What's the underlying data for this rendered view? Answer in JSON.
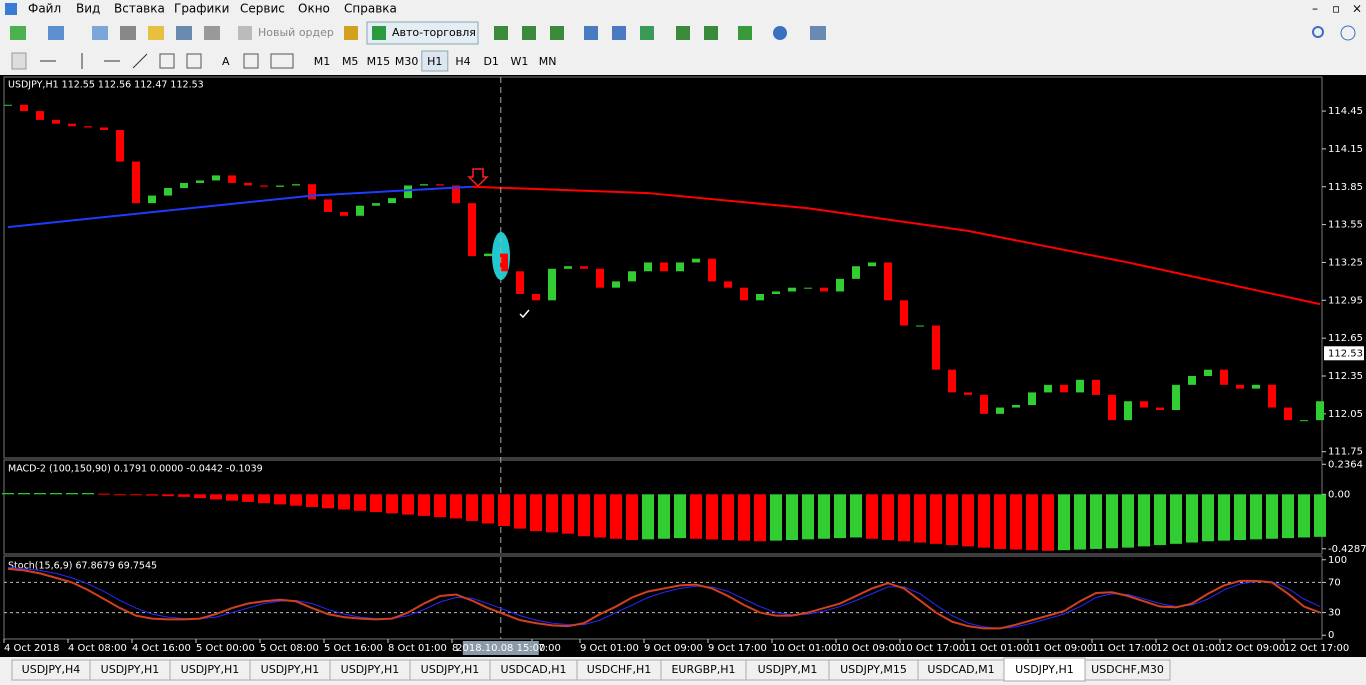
{
  "menu": [
    "Файл",
    "Вид",
    "Вставка",
    "Графики",
    "Сервис",
    "Окно",
    "Справка"
  ],
  "toolbar": {
    "new_order": "Новый ордер",
    "auto_trading": "Авто-торговля"
  },
  "timeframes": [
    "M1",
    "M5",
    "M15",
    "M30",
    "H1",
    "H4",
    "D1",
    "W1",
    "MN"
  ],
  "tabs": [
    "USDJPY,H4",
    "USDJPY,H1",
    "USDJPY,H1",
    "USDJPY,H1",
    "USDJPY,H1",
    "USDJPY,H1",
    "USDCAD,H1",
    "USDCHF,H1",
    "EURGBP,H1",
    "USDJPY,M1",
    "USDJPY,M15",
    "USDCAD,M1",
    "USDJPY,H1",
    "USDCHF,M30"
  ],
  "chart_data": [
    {
      "type": "candlestick",
      "title": "USDJPY,H1  112.55 112.56 112.47 112.53",
      "up_color": "#32cd32",
      "down_color": "#ff0000",
      "closes": [
        114.5,
        114.45,
        114.38,
        114.35,
        114.33,
        114.32,
        114.3,
        114.05,
        113.72,
        113.78,
        113.84,
        113.88,
        113.9,
        113.94,
        113.88,
        113.86,
        113.85,
        113.86,
        113.87,
        113.75,
        113.65,
        113.62,
        113.7,
        113.72,
        113.76,
        113.86,
        113.87,
        113.86,
        113.72,
        113.3,
        113.32,
        113.18,
        113.0,
        112.95,
        113.2,
        113.22,
        113.2,
        113.05,
        113.1,
        113.18,
        113.25,
        113.18,
        113.25,
        113.28,
        113.1,
        113.05,
        112.95,
        113.0,
        113.02,
        113.05,
        113.05,
        113.02,
        113.12,
        113.22,
        113.25,
        112.95,
        112.75,
        112.75,
        112.4,
        112.22,
        112.2,
        112.05,
        112.1,
        112.12,
        112.22,
        112.28,
        112.22,
        112.32,
        112.2,
        112.0,
        112.15,
        112.1,
        112.08,
        112.28,
        112.35,
        112.4,
        112.28,
        112.25,
        112.28,
        112.1,
        112.0,
        112.0,
        112.15
      ],
      "series": [
        {
          "color": "#1e3cff",
          "x": [
            0,
            19,
            29
          ],
          "values": [
            113.53,
            113.78,
            113.85
          ]
        },
        {
          "color": "#ff0000",
          "x": [
            29,
            40,
            50,
            60,
            70,
            82
          ],
          "values": [
            113.85,
            113.8,
            113.68,
            113.5,
            113.25,
            112.92
          ]
        }
      ],
      "ylim": [
        111.7,
        114.72
      ],
      "yticks": [
        114.45,
        114.15,
        113.85,
        113.55,
        113.25,
        112.95,
        112.65,
        112.35,
        112.05,
        111.75
      ],
      "price_label": 112.53,
      "crosshair": {
        "x": 30.8,
        "label": "2018.10.08 15:00"
      },
      "xticks": [
        {
          "value": 0,
          "label": "4 Oct 2018"
        },
        {
          "value": 4,
          "label": "4 Oct 08:00"
        },
        {
          "value": 8,
          "label": "4 Oct 16:00"
        },
        {
          "value": 12,
          "label": "5 Oct 00:00"
        },
        {
          "value": 16,
          "label": "5 Oct 08:00"
        },
        {
          "value": 20,
          "label": "5 Oct 16:00"
        },
        {
          "value": 24,
          "label": "8 Oct 01:00"
        },
        {
          "value": 28,
          "label": "8"
        },
        {
          "value": 33,
          "label": "17:00"
        },
        {
          "value": 36,
          "label": "9 Oct 01:00"
        },
        {
          "value": 40,
          "label": "9 Oct 09:00"
        },
        {
          "value": 44,
          "label": "9 Oct 17:00"
        },
        {
          "value": 48,
          "label": "10 Oct 01:00"
        },
        {
          "value": 52,
          "label": "10 Oct 09:00"
        },
        {
          "value": 56,
          "label": "10 Oct 17:00"
        },
        {
          "value": 60,
          "label": "11 Oct 01:00"
        },
        {
          "value": 64,
          "label": "11 Oct 09:00"
        },
        {
          "value": 68,
          "label": "11 Oct 17:00"
        },
        {
          "value": 72,
          "label": "12 Oct 01:00"
        },
        {
          "value": 76,
          "label": "12 Oct 09:00"
        },
        {
          "value": 80,
          "label": "12 Oct 17:00"
        }
      ]
    },
    {
      "type": "bar",
      "title": "MACD-2 (100,150,90) 0.1791 0.0000 -0.0442 -0.1039",
      "up_color": "#32cd32",
      "down_color": "#ff0000",
      "values": [
        0.01,
        0.01,
        0.01,
        0.01,
        0.01,
        0.01,
        0.005,
        0.0,
        -0.005,
        -0.01,
        -0.015,
        -0.02,
        -0.03,
        -0.04,
        -0.05,
        -0.06,
        -0.07,
        -0.08,
        -0.09,
        -0.1,
        -0.11,
        -0.12,
        -0.13,
        -0.14,
        -0.15,
        -0.16,
        -0.17,
        -0.18,
        -0.19,
        -0.21,
        -0.23,
        -0.25,
        -0.27,
        -0.29,
        -0.3,
        -0.31,
        -0.33,
        -0.34,
        -0.35,
        -0.36,
        -0.355,
        -0.35,
        -0.345,
        -0.35,
        -0.355,
        -0.36,
        -0.365,
        -0.37,
        -0.365,
        -0.36,
        -0.355,
        -0.35,
        -0.345,
        -0.34,
        -0.35,
        -0.36,
        -0.37,
        -0.38,
        -0.39,
        -0.4,
        -0.41,
        -0.42,
        -0.43,
        -0.435,
        -0.44,
        -0.445,
        -0.44,
        -0.435,
        -0.43,
        -0.425,
        -0.42,
        -0.41,
        -0.4,
        -0.39,
        -0.38,
        -0.37,
        -0.365,
        -0.36,
        -0.355,
        -0.35,
        -0.345,
        -0.34,
        -0.335
      ],
      "ylim": [
        -0.47,
        0.27
      ],
      "yticks": [
        0.2364,
        {
          "value": 0,
          "label": "0.00"
        },
        -0.4287
      ]
    },
    {
      "type": "line",
      "title": "Stoch(15,6,9) 67.8679 69.7545",
      "series": [
        {
          "color": "#d04020",
          "values": [
            88,
            86,
            82,
            76,
            70,
            60,
            48,
            36,
            26,
            22,
            21,
            21,
            22,
            28,
            36,
            42,
            45,
            47,
            45,
            36,
            28,
            24,
            22,
            21,
            22,
            30,
            42,
            52,
            54,
            46,
            36,
            28,
            20,
            16,
            13,
            12,
            16,
            28,
            38,
            50,
            58,
            62,
            66,
            67,
            62,
            52,
            40,
            30,
            26,
            26,
            30,
            36,
            42,
            52,
            62,
            69,
            62,
            46,
            30,
            18,
            12,
            9,
            9,
            14,
            20,
            26,
            32,
            45,
            56,
            57,
            52,
            45,
            38,
            37,
            42,
            55,
            66,
            72,
            72,
            70,
            55,
            38,
            30
          ]
        },
        {
          "color": "#2828ff",
          "values": [
            90,
            88,
            86,
            82,
            76,
            68,
            58,
            46,
            36,
            28,
            24,
            22,
            22,
            24,
            30,
            36,
            42,
            45,
            46,
            42,
            34,
            28,
            24,
            22,
            22,
            26,
            34,
            44,
            50,
            49,
            42,
            34,
            26,
            20,
            16,
            14,
            14,
            20,
            30,
            40,
            50,
            57,
            62,
            65,
            64,
            58,
            48,
            38,
            30,
            27,
            28,
            32,
            38,
            46,
            55,
            64,
            64,
            55,
            40,
            26,
            16,
            11,
            9,
            11,
            16,
            22,
            28,
            38,
            50,
            55,
            54,
            48,
            42,
            38,
            40,
            48,
            60,
            68,
            71,
            71,
            62,
            48,
            38
          ]
        }
      ],
      "ylim": [
        -5,
        105
      ],
      "yticks": [
        100,
        70,
        30,
        0
      ],
      "levels": [
        70,
        30
      ]
    }
  ]
}
